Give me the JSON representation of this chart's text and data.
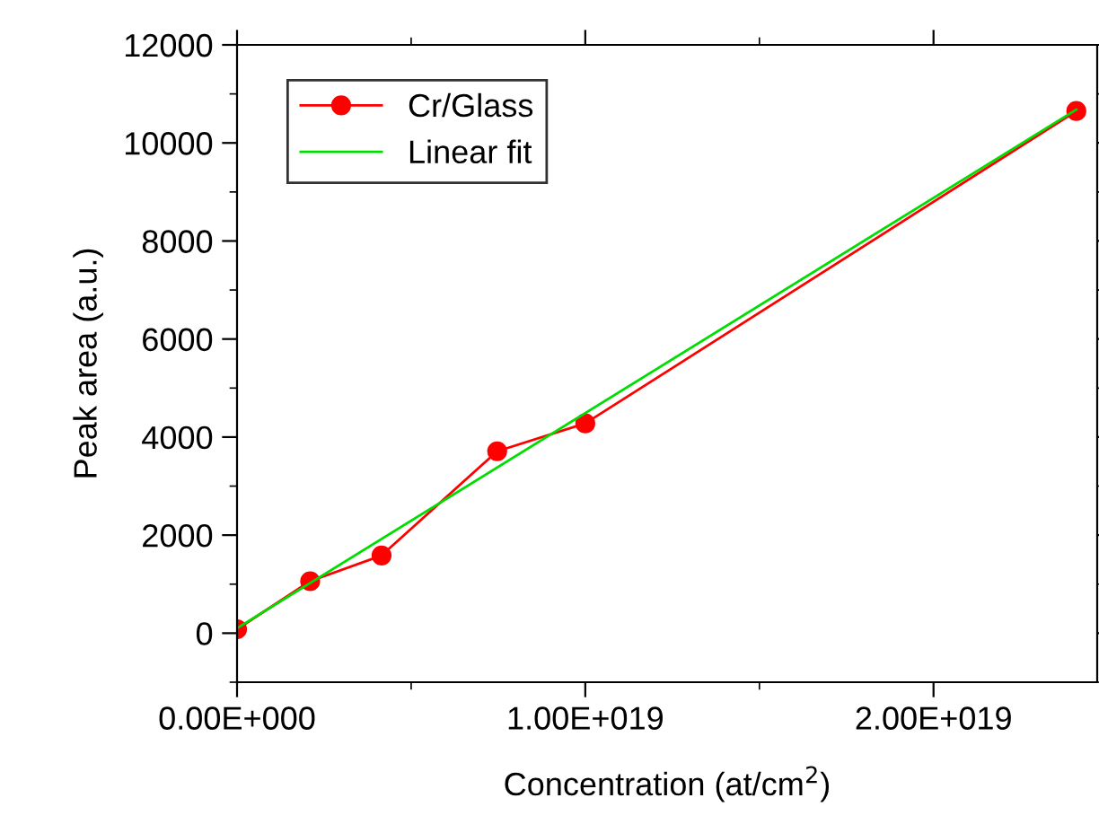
{
  "chart_data": {
    "type": "line",
    "xlabel": "Concentration (at/cm$^{2}$)",
    "ylabel": "Peak area (a.u.)",
    "xlim": [
      0,
      2.47e+19
    ],
    "ylim": [
      -1000,
      12000
    ],
    "xticks": [
      {
        "value": 0,
        "label": "0.00E+000"
      },
      {
        "value": 1e+19,
        "label": "1.00E+019"
      },
      {
        "value": 2e+19,
        "label": "2.00E+019"
      }
    ],
    "yticks": [
      0,
      2000,
      4000,
      6000,
      8000,
      10000,
      12000
    ],
    "legend": "top left",
    "grid": false,
    "series": [
      {
        "name": "Cr/Glass",
        "color": "#ff0000",
        "marker": "circle",
        "x": [
          0,
          2.1e+18,
          4.15e+18,
          7.47e+18,
          1e+19,
          2.41e+19
        ],
        "values": [
          80,
          1060,
          1585,
          3710,
          4280,
          10650
        ]
      },
      {
        "name": "Linear fit",
        "color": "#00dd00",
        "marker": "none",
        "x": [
          0,
          2.41e+19
        ],
        "values": [
          100,
          10680
        ]
      }
    ]
  }
}
